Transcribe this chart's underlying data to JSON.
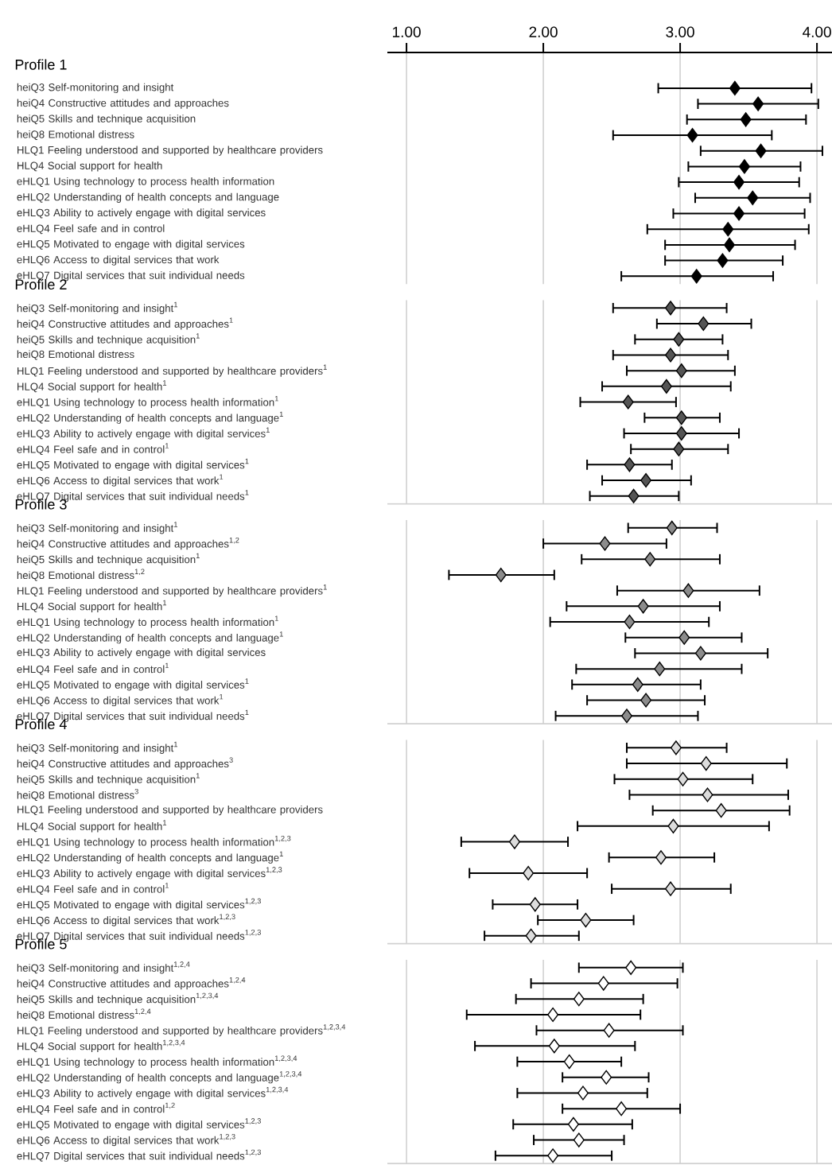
{
  "chart_data": [
    {
      "type": "scatter",
      "orientation": "horizontal",
      "title": "Profile 1",
      "marker": "diamond",
      "color": "#000000",
      "xlim": [
        0.86,
        4.11
      ],
      "grid": "x",
      "xticks": [
        {
          "value": 1,
          "label": "1.00"
        },
        {
          "value": 2,
          "label": "2.00"
        },
        {
          "value": 3,
          "label": "3.00"
        },
        {
          "value": 4,
          "label": "4.00"
        }
      ],
      "categories": [
        "heiQ3 Self-monitoring and insight",
        "heiQ4 Constructive attitudes and approaches",
        "heiQ5 Skills and technique acquisition",
        "heiQ8 Emotional distress",
        "HLQ1 Feeling understood and supported by healthcare providers",
        "HLQ4 Social support for health",
        "eHLQ1 Using technology to process health information",
        "eHLQ2 Understanding of health concepts and language",
        "eHLQ3 Ability to actively engage with digital services",
        "eHLQ4 Feel safe and in control",
        "eHLQ5 Motivated to engage with digital services",
        "eHLQ6 Access to digital services that work",
        "eHLQ7 Digital services that suit individual needs"
      ],
      "values": [
        3.4,
        3.57,
        3.48,
        3.09,
        3.59,
        3.47,
        3.43,
        3.53,
        3.43,
        3.35,
        3.36,
        3.31,
        3.12
      ],
      "errors": [
        [
          2.84,
          3.96
        ],
        [
          3.13,
          4.01
        ],
        [
          3.05,
          3.92
        ],
        [
          2.51,
          3.67
        ],
        [
          3.15,
          4.04
        ],
        [
          3.06,
          3.88
        ],
        [
          2.99,
          3.87
        ],
        [
          3.11,
          3.95
        ],
        [
          2.95,
          3.91
        ],
        [
          2.76,
          3.94
        ],
        [
          2.89,
          3.84
        ],
        [
          2.89,
          3.75
        ],
        [
          2.57,
          3.68
        ]
      ]
    },
    {
      "type": "scatter",
      "orientation": "horizontal",
      "title": "Profile 2",
      "marker": "diamond",
      "color": "#555555",
      "tick_labels": "y",
      "grid": "x",
      "xlim": [
        0.86,
        4.11
      ],
      "xticks": [
        1,
        2,
        3,
        4
      ],
      "categories": [
        "heiQ3 Self-monitoring and insight$^{1}$",
        "heiQ4 Constructive attitudes and approaches$^{1}$",
        "heiQ5 Skills and technique acquisition$^{1}$",
        "heiQ8 Emotional distress",
        "HLQ1 Feeling understood and supported by healthcare providers$^{1}$",
        "HLQ4 Social support for health$^{1}$",
        "eHLQ1 Using technology to process health information$^{1}$",
        "eHLQ2 Understanding of health concepts and language$^{1}$",
        "eHLQ3 Ability to actively engage with digital services$^{1}$",
        "eHLQ4 Feel safe and in control$^{1}$",
        "eHLQ5 Motivated to engage with digital services$^{1}$",
        "eHLQ6 Access to digital services that work$^{1}$",
        "eHLQ7 Digital services that suit individual needs$^{1}$"
      ],
      "values": [
        2.93,
        3.17,
        2.99,
        2.93,
        3.01,
        2.9,
        2.62,
        3.01,
        3.01,
        2.99,
        2.63,
        2.75,
        2.66
      ],
      "errors": [
        [
          2.51,
          3.34
        ],
        [
          2.83,
          3.52
        ],
        [
          2.67,
          3.31
        ],
        [
          2.51,
          3.35
        ],
        [
          2.61,
          3.4
        ],
        [
          2.43,
          3.37
        ],
        [
          2.27,
          2.97
        ],
        [
          2.74,
          3.29
        ],
        [
          2.59,
          3.43
        ],
        [
          2.64,
          3.35
        ],
        [
          2.32,
          2.94
        ],
        [
          2.43,
          3.08
        ],
        [
          2.34,
          2.99
        ]
      ]
    },
    {
      "type": "scatter",
      "orientation": "horizontal",
      "title": "Profile 3",
      "marker": "diamond",
      "color": "#8c8c8c",
      "tick_labels": "y",
      "grid": "x",
      "xlim": [
        0.86,
        4.11
      ],
      "xticks": [
        1,
        2,
        3,
        4
      ],
      "categories": [
        "heiQ3 Self-monitoring and insight$^{1}$",
        "heiQ4 Constructive attitudes and approaches$^{1,2}$",
        "heiQ5 Skills and technique acquisition$^{1}$",
        "heiQ8 Emotional distress$^{1,2}$",
        "HLQ1 Feeling understood and supported by healthcare providers$^{1}$",
        "HLQ4 Social support for health$^{1}$",
        "eHLQ1 Using technology to process health information$^{1}$",
        "eHLQ2 Understanding of health concepts and language$^{1}$",
        "eHLQ3 Ability to actively engage with digital services",
        "eHLQ4 Feel safe and in control$^{1}$",
        "eHLQ5 Motivated to engage with digital services$^{1}$",
        "eHLQ6 Access to digital services that work$^{1}$",
        "eHLQ7 Digital services that suit individual needs$^{1}$"
      ],
      "values": [
        2.94,
        2.45,
        2.78,
        1.69,
        3.06,
        2.73,
        2.63,
        3.03,
        3.15,
        2.85,
        2.69,
        2.75,
        2.61
      ],
      "errors": [
        [
          2.62,
          3.27
        ],
        [
          2.0,
          2.9
        ],
        [
          2.28,
          3.29
        ],
        [
          1.31,
          2.08
        ],
        [
          2.54,
          3.58
        ],
        [
          2.17,
          3.29
        ],
        [
          2.05,
          3.21
        ],
        [
          2.6,
          3.45
        ],
        [
          2.67,
          3.64
        ],
        [
          2.24,
          3.45
        ],
        [
          2.21,
          3.15
        ],
        [
          2.32,
          3.18
        ],
        [
          2.09,
          3.13
        ]
      ]
    },
    {
      "type": "scatter",
      "orientation": "horizontal",
      "title": "Profile 4",
      "marker": "diamond",
      "color": "#dcdcdc",
      "tick_labels": "y",
      "grid": "x",
      "xlim": [
        0.86,
        4.11
      ],
      "xticks": [
        1,
        2,
        3,
        4
      ],
      "categories": [
        "heiQ3 Self-monitoring and insight$^{1}$",
        "heiQ4 Constructive attitudes and approaches$^{3}$",
        "heiQ5 Skills and technique acquisition$^{1}$",
        "heiQ8 Emotional distress$^{3}$",
        "HLQ1 Feeling understood and supported by healthcare providers",
        "HLQ4 Social support for health$^{1}$",
        "eHLQ1 Using technology to process health information$^{1,2,3}$",
        "eHLQ2 Understanding of health concepts and language$^{1}$",
        "eHLQ3 Ability to actively engage with digital services$^{1,2,3}$",
        "eHLQ4 Feel safe and in control$^{1}$",
        "eHLQ5 Motivated to engage with digital services$^{1,2,3}$",
        "eHLQ6 Access to digital services that work$^{1,2,3}$",
        "eHLQ7 Digital services that suit individual needs$^{1,2,3}$"
      ],
      "values": [
        2.97,
        3.19,
        3.02,
        3.2,
        3.3,
        2.95,
        1.79,
        2.86,
        1.89,
        2.93,
        1.94,
        2.31,
        1.91
      ],
      "errors": [
        [
          2.61,
          3.34
        ],
        [
          2.61,
          3.78
        ],
        [
          2.52,
          3.53
        ],
        [
          2.63,
          3.79
        ],
        [
          2.8,
          3.8
        ],
        [
          2.25,
          3.65
        ],
        [
          1.4,
          2.18
        ],
        [
          2.48,
          3.25
        ],
        [
          1.46,
          2.32
        ],
        [
          2.5,
          3.37
        ],
        [
          1.63,
          2.25
        ],
        [
          1.96,
          2.66
        ],
        [
          1.57,
          2.26
        ]
      ]
    },
    {
      "type": "scatter",
      "orientation": "horizontal",
      "title": "Profile 5",
      "marker": "diamond",
      "color": "#ffffff",
      "tick_labels": "y",
      "grid": "x",
      "xlim": [
        0.86,
        4.11
      ],
      "xticks": [
        1,
        2,
        3,
        4
      ],
      "categories": [
        "heiQ3 Self-monitoring and insight$^{1,2,4}$",
        "heiQ4 Constructive attitudes and approaches$^{1,2,4}$",
        "heiQ5 Skills and technique acquisition$^{1,2,3,4}$",
        "heiQ8 Emotional distress$^{1,2,4}$",
        "HLQ1 Feeling understood and supported by healthcare providers$^{1,2,3,4}$",
        "HLQ4 Social support for health$^{1,2,3,4}$",
        "eHLQ1 Using technology to process health information$^{1,2,3,4}$",
        "eHLQ2 Understanding of health concepts and language$^{1,2,3,4}$",
        "eHLQ3 Ability to actively engage with digital services$^{1,2,3,4}$",
        "eHLQ4 Feel safe and in control$^{1,2}$",
        "eHLQ5 Motivated to engage with digital services$^{1,2,3}$",
        "eHLQ6 Access to digital services that work$^{1,2,3}$",
        "eHLQ7 Digital services that suit individual needs$^{1,2,3}$"
      ],
      "values": [
        2.64,
        2.44,
        2.26,
        2.07,
        2.48,
        2.08,
        2.19,
        2.46,
        2.29,
        2.57,
        2.22,
        2.26,
        2.07
      ],
      "errors": [
        [
          2.26,
          3.02
        ],
        [
          1.91,
          2.98
        ],
        [
          1.8,
          2.73
        ],
        [
          1.44,
          2.71
        ],
        [
          1.95,
          3.02
        ],
        [
          1.5,
          2.67
        ],
        [
          1.81,
          2.57
        ],
        [
          2.14,
          2.77
        ],
        [
          1.81,
          2.76
        ],
        [
          2.14,
          3.0
        ],
        [
          1.78,
          2.65
        ],
        [
          1.93,
          2.59
        ],
        [
          1.65,
          2.5
        ]
      ]
    }
  ]
}
